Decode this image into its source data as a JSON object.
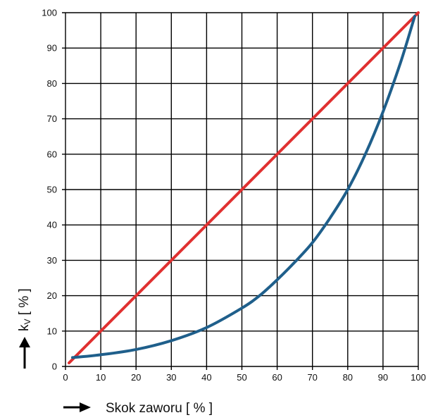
{
  "chart_data": {
    "type": "line",
    "title": "",
    "xlabel": "Skok zaworu [ % ]",
    "ylabel_main": "k",
    "ylabel_sub": "V",
    "ylabel_tail": " [ % ]",
    "xlim": [
      0,
      100
    ],
    "ylim": [
      0,
      100
    ],
    "x_ticks": [
      "0",
      "10",
      "20",
      "30",
      "40",
      "50",
      "60",
      "70",
      "80",
      "90",
      "100"
    ],
    "y_ticks": [
      "0",
      "10",
      "20",
      "30",
      "40",
      "50",
      "60",
      "70",
      "80",
      "90",
      "100"
    ],
    "grid": true,
    "legend": "none",
    "series": [
      {
        "color": "#e03030",
        "x": [
          1,
          100
        ],
        "y": [
          1,
          100
        ]
      },
      {
        "color": "#1f5f8b",
        "x": [
          2,
          10,
          20,
          30,
          40,
          50,
          55,
          60,
          65,
          70,
          75,
          80,
          85,
          90,
          95,
          99
        ],
        "y": [
          2.5,
          3.3,
          4.8,
          7.3,
          11,
          16.5,
          20,
          24.5,
          29.5,
          35,
          42,
          50,
          60,
          72,
          86,
          99
        ]
      }
    ]
  }
}
